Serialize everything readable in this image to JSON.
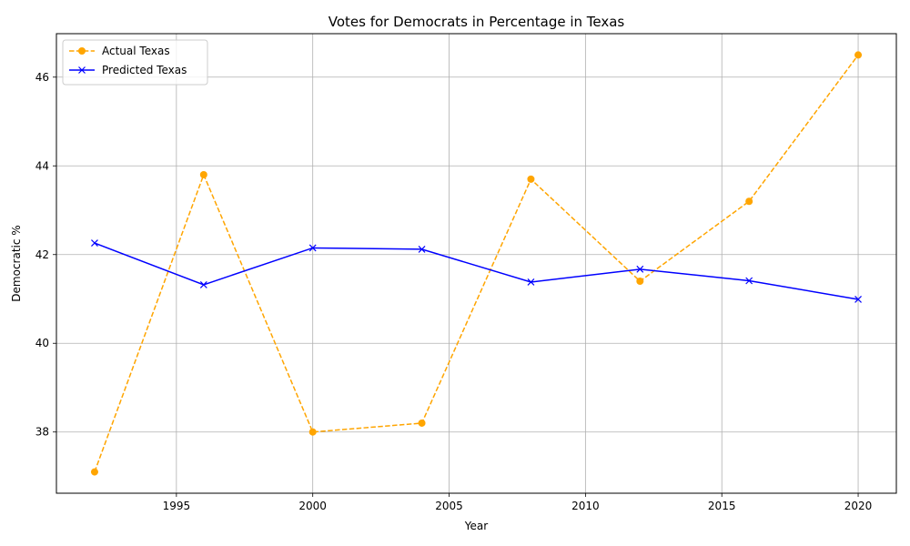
{
  "chart_data": {
    "type": "line",
    "title": "Votes for Democrats in Percentage in Texas",
    "xlabel": "Year",
    "ylabel": "Democratic %",
    "xlim": [
      1990.6,
      2021.4
    ],
    "ylim": [
      36.62,
      46.98
    ],
    "x_ticks": [
      1995,
      2000,
      2005,
      2010,
      2015,
      2020
    ],
    "y_ticks": [
      38,
      40,
      42,
      44,
      46
    ],
    "grid": true,
    "legend_position": "top-left",
    "x": [
      1992,
      1996,
      2000,
      2004,
      2008,
      2012,
      2016,
      2020
    ],
    "series": [
      {
        "name": "Actual Texas",
        "color": "#ffa500",
        "line_style": "dashed",
        "marker": "circle",
        "values": [
          37.1,
          43.8,
          38.0,
          38.2,
          43.7,
          41.4,
          43.2,
          46.5
        ]
      },
      {
        "name": "Predicted Texas",
        "color": "#0000ff",
        "line_style": "solid",
        "marker": "x",
        "values": [
          42.26,
          41.32,
          42.15,
          42.12,
          41.38,
          41.67,
          41.41,
          40.99
        ]
      }
    ]
  }
}
